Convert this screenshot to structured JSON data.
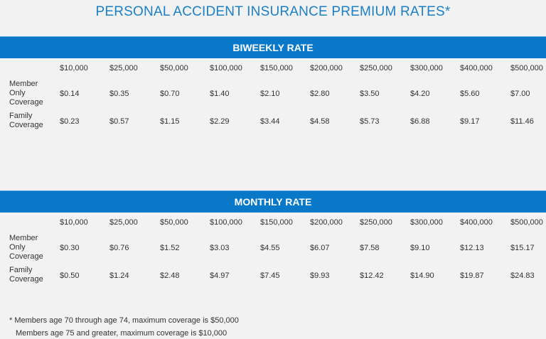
{
  "title": "PERSONAL ACCIDENT INSURANCE PREMIUM RATES*",
  "coverage_amounts": [
    "$10,000",
    "$25,000",
    "$50,000",
    "$100,000",
    "$150,000",
    "$200,000",
    "$250,000",
    "$300,000",
    "$400,000",
    "$500,000"
  ],
  "row_labels": {
    "member": "Member\nOnly\nCoverage",
    "family": "Family\nCoverage"
  },
  "biweekly": {
    "heading": "BIWEEKLY RATE",
    "member": [
      "$0.14",
      "$0.35",
      "$0.70",
      "$1.40",
      "$2.10",
      "$2.80",
      "$3.50",
      "$4.20",
      "$5.60",
      "$7.00"
    ],
    "family": [
      "$0.23",
      "$0.57",
      "$1.15",
      "$2.29",
      "$3.44",
      "$4.58",
      "$5.73",
      "$6.88",
      "$9.17",
      "$11.46"
    ]
  },
  "monthly": {
    "heading": "MONTHLY RATE",
    "member": [
      "$0.30",
      "$0.76",
      "$1.52",
      "$3.03",
      "$4.55",
      "$6.07",
      "$7.58",
      "$9.10",
      "$12.13",
      "$15.17"
    ],
    "family": [
      "$0.50",
      "$1.24",
      "$2.48",
      "$4.97",
      "$7.45",
      "$9.93",
      "$12.42",
      "$14.90",
      "$19.87",
      "$24.83"
    ]
  },
  "footnotes": [
    "* Members age 70 through age 74, maximum coverage is $50,000",
    "Members age 75 and greater, maximum coverage is $10,000"
  ],
  "colors": {
    "accent": "#0a78c8",
    "title": "#1a7fc4",
    "background": "#f2f2f2"
  }
}
